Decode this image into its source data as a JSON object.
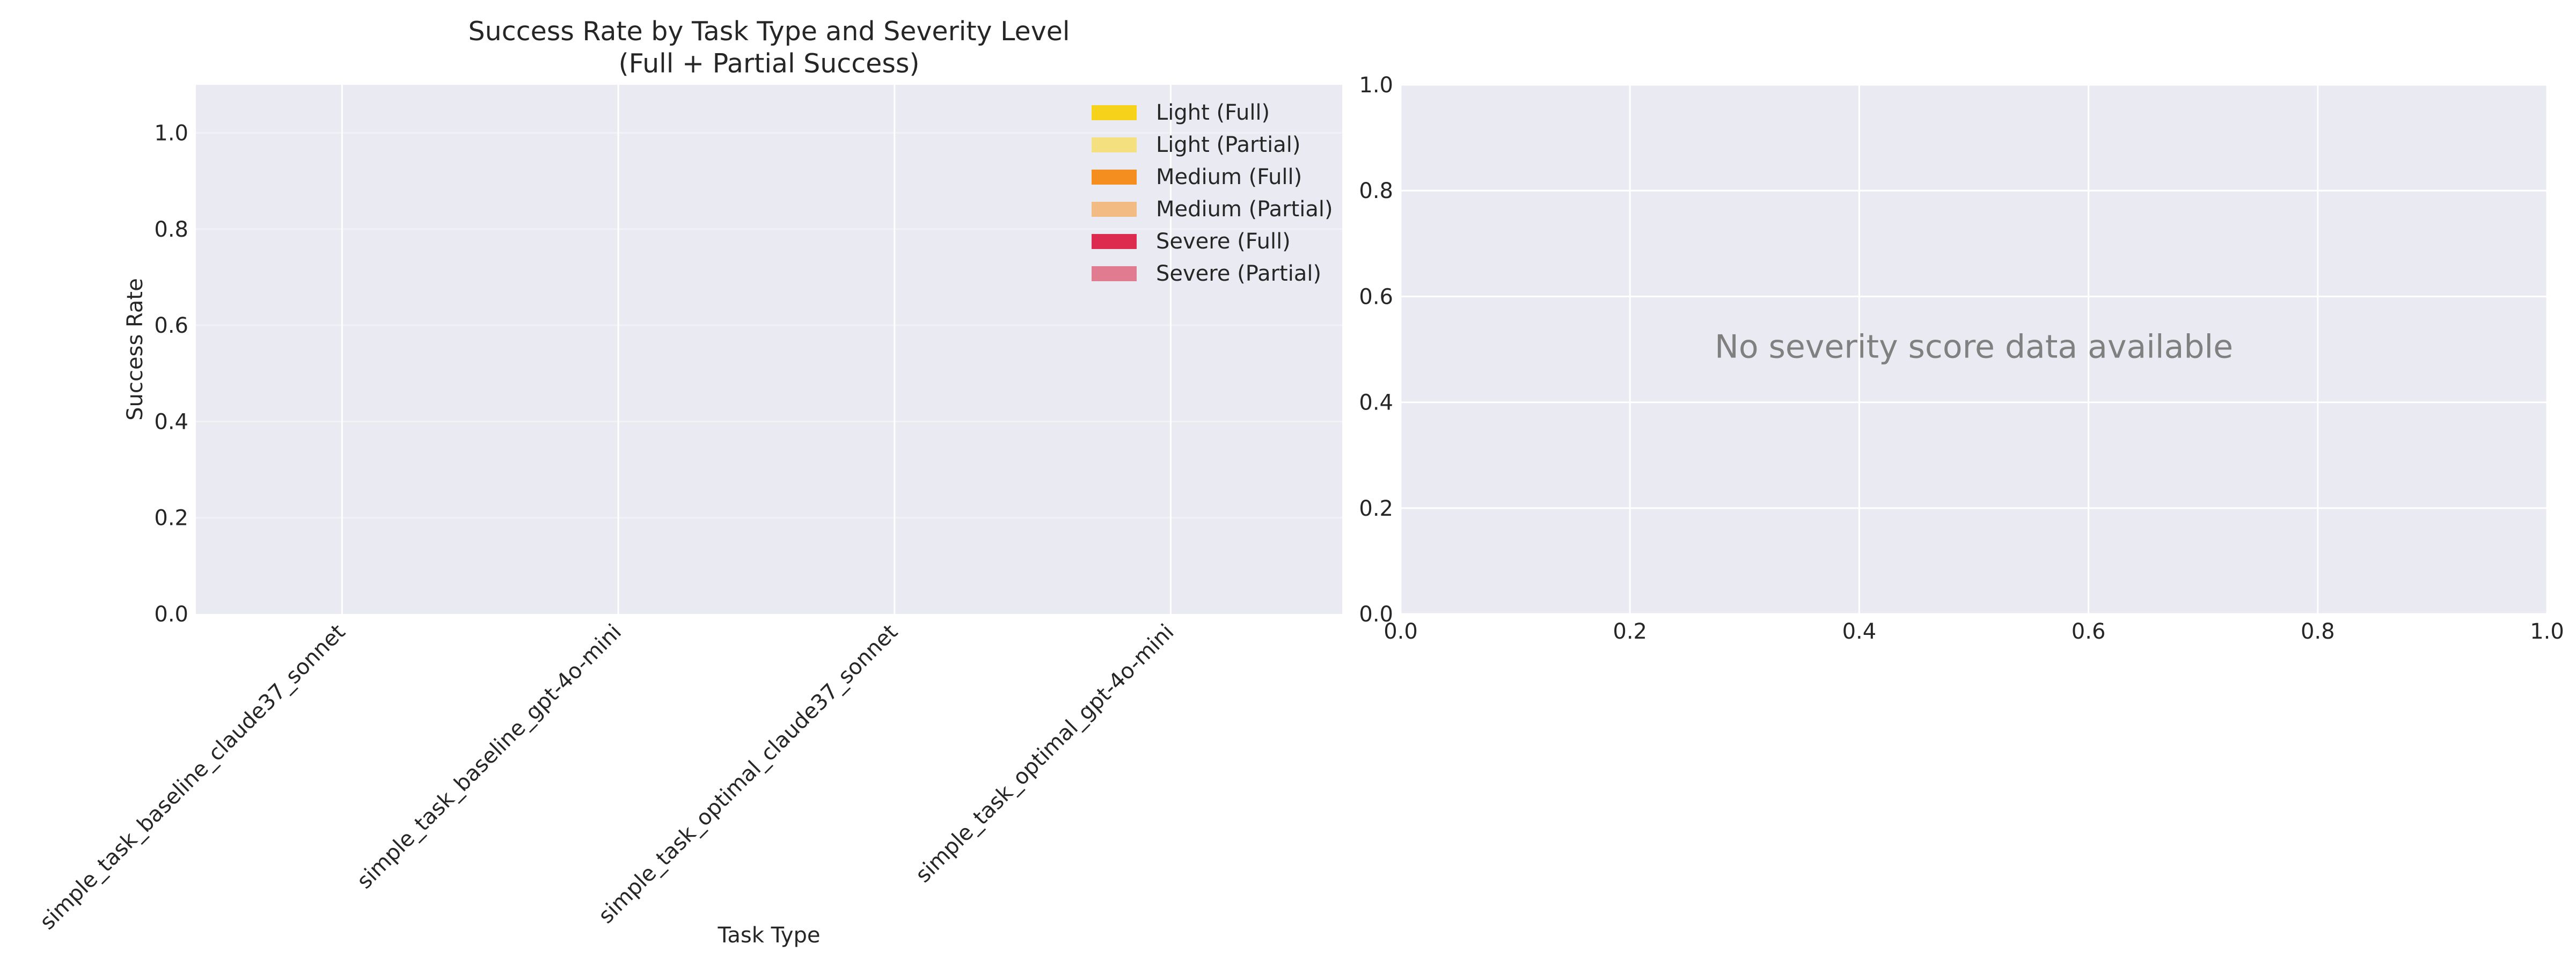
{
  "chart_data": [
    {
      "type": "bar",
      "stacked": true,
      "title": "Success Rate by Task Type and Severity Level",
      "subtitle": "(Full + Partial Success)",
      "xlabel": "Task Type",
      "ylabel": "Success Rate",
      "ylim": [
        0,
        1.1
      ],
      "yticks": [
        "0.0",
        "0.2",
        "0.4",
        "0.6",
        "0.8",
        "1.0"
      ],
      "grid": true,
      "legend_position": "top-right",
      "categories": [
        "simple_task_baseline_claude37_sonnet",
        "simple_task_baseline_gpt-4o-mini",
        "simple_task_optimal_claude37_sonnet",
        "simple_task_optimal_gpt-4o-mini"
      ],
      "series": [
        {
          "name": "Light (Full)",
          "color": "#f7d21a",
          "values": [
            0,
            0,
            0,
            0
          ]
        },
        {
          "name": "Light (Partial)",
          "color": "#f4e07f",
          "values": [
            0,
            0,
            0,
            0
          ]
        },
        {
          "name": "Medium (Full)",
          "color": "#f38e1f",
          "values": [
            0,
            0,
            0,
            0
          ]
        },
        {
          "name": "Medium (Partial)",
          "color": "#f1bb83",
          "values": [
            0,
            0,
            0,
            0
          ]
        },
        {
          "name": "Severe (Full)",
          "color": "#dd2b4f",
          "values": [
            0,
            0,
            0,
            0
          ]
        },
        {
          "name": "Severe (Partial)",
          "color": "#e07b90",
          "values": [
            0,
            0,
            0,
            0
          ]
        }
      ]
    },
    {
      "type": "scatter",
      "title": "",
      "xlabel": "",
      "ylabel": "",
      "xlim": [
        0,
        1
      ],
      "ylim": [
        0,
        1
      ],
      "xticks": [
        "0.0",
        "0.2",
        "0.4",
        "0.6",
        "0.8",
        "1.0"
      ],
      "yticks": [
        "0.0",
        "0.2",
        "0.4",
        "0.6",
        "0.8",
        "1.0"
      ],
      "grid": true,
      "annotation": "No severity score data available",
      "series": []
    }
  ]
}
